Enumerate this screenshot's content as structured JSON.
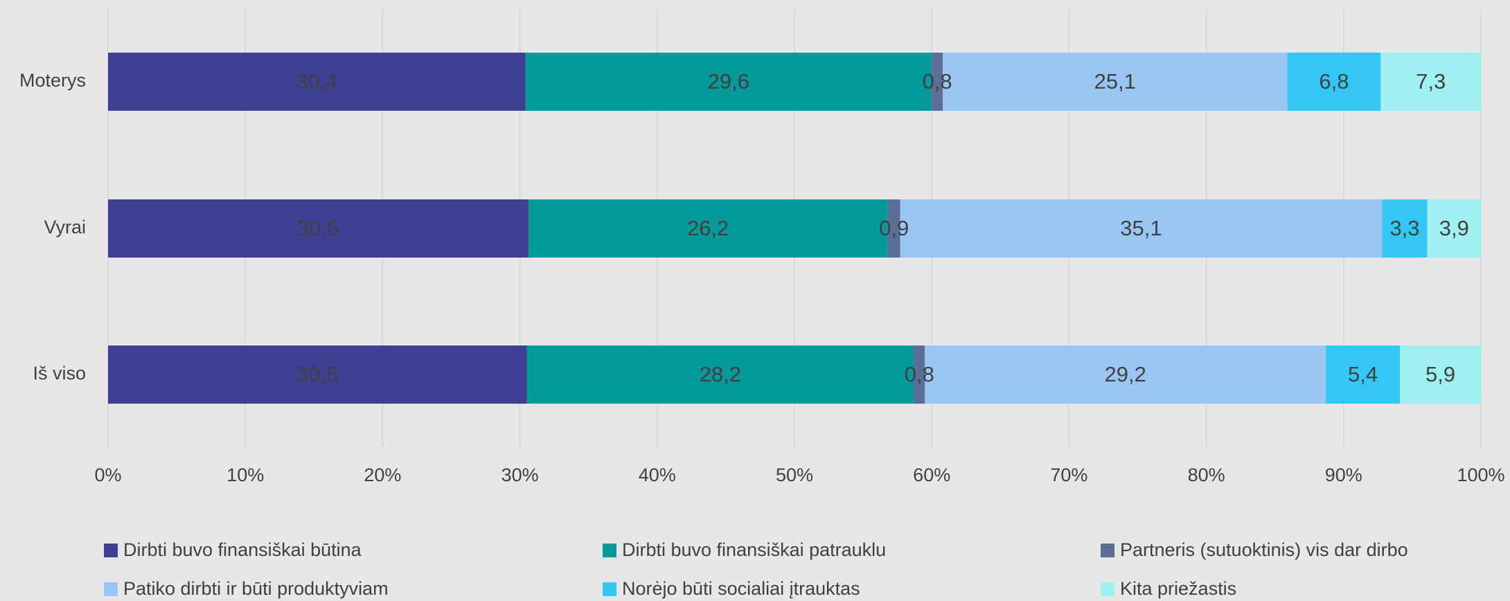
{
  "chart_data": {
    "type": "stacked-bar-horizontal",
    "categories": [
      "Moterys",
      "Vyrai",
      "Iš viso"
    ],
    "series": [
      {
        "name": "Dirbti buvo finansiškai būtina",
        "color": "#3f3f96",
        "values": [
          30.4,
          30.6,
          30.5
        ],
        "value_labels": [
          "30,4",
          "30,6",
          "30,5"
        ]
      },
      {
        "name": "Dirbti buvo finansiškai patrauklu",
        "color": "#05999a",
        "values": [
          29.6,
          26.2,
          28.2
        ],
        "value_labels": [
          "29,6",
          "26,2",
          "28,2"
        ]
      },
      {
        "name": "Partneris (sutuoktinis) vis dar dirbo",
        "color": "#5a6e96",
        "values": [
          0.8,
          0.9,
          0.8
        ],
        "value_labels": [
          "0,8",
          "0,9",
          "0,8"
        ]
      },
      {
        "name": "Patiko dirbti ir būti produktyviam",
        "color": "#9ac5f5",
        "values": [
          25.1,
          35.1,
          29.2
        ],
        "value_labels": [
          "25,1",
          "35,1",
          "29,2"
        ]
      },
      {
        "name": "Norėjo būti socialiai įtrauktas",
        "color": "#33c7f5",
        "values": [
          6.8,
          3.3,
          5.4
        ],
        "value_labels": [
          "6,8",
          "3,3",
          "5,4"
        ]
      },
      {
        "name": "Kita priežastis",
        "color": "#9ff0f0",
        "values": [
          7.3,
          3.9,
          5.9
        ],
        "value_labels": [
          "7,3",
          "3,9",
          "5,9"
        ]
      }
    ],
    "xlim": [
      0,
      100
    ],
    "xticks": [
      {
        "value": 0,
        "label": "0%"
      },
      {
        "value": 10,
        "label": "10%"
      },
      {
        "value": 20,
        "label": "20%"
      },
      {
        "value": 30,
        "label": "30%"
      },
      {
        "value": 40,
        "label": "40%"
      },
      {
        "value": 50,
        "label": "50%"
      },
      {
        "value": 60,
        "label": "60%"
      },
      {
        "value": 70,
        "label": "70%"
      },
      {
        "value": 80,
        "label": "80%"
      },
      {
        "value": 90,
        "label": "90%"
      },
      {
        "value": 100,
        "label": "100%"
      }
    ],
    "grid": true,
    "legend": "bottom"
  }
}
